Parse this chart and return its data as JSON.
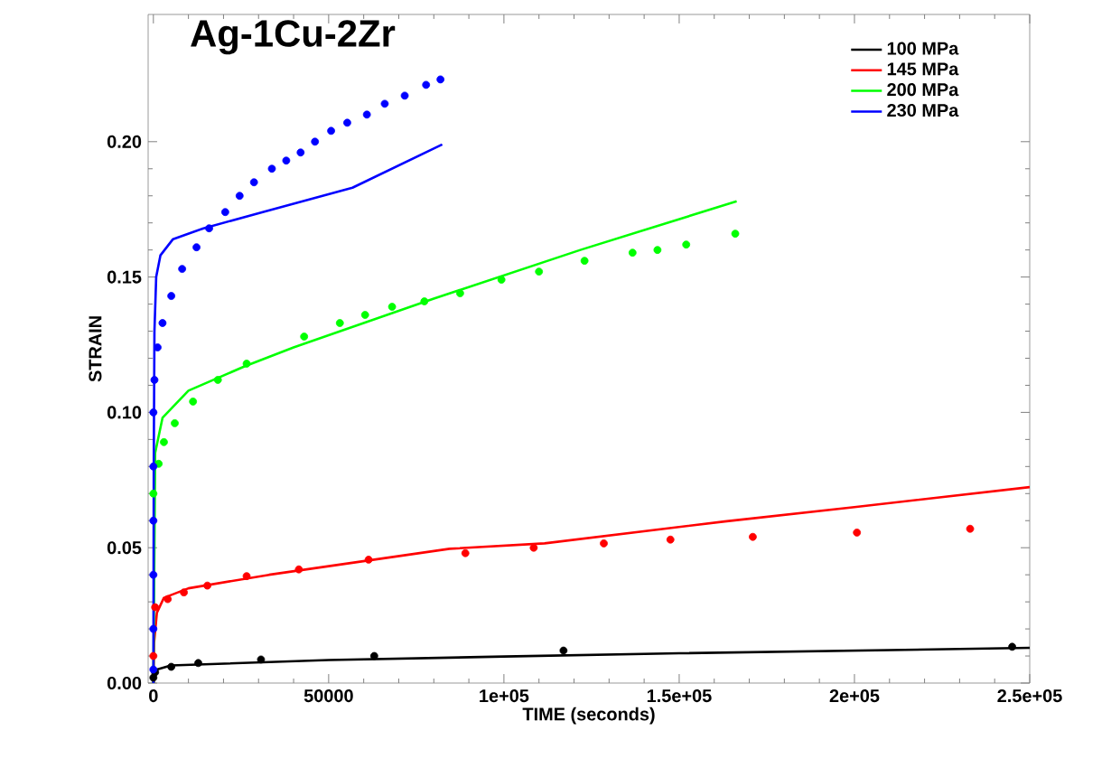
{
  "chart_data": {
    "type": "line",
    "title": "Ag-1Cu-2Zr",
    "xlabel": "TIME  (seconds)",
    "ylabel": "STRAIN",
    "xlim": [
      -1500,
      250000
    ],
    "ylim": [
      0,
      0.247
    ],
    "xticks": [
      0,
      50000,
      {
        "value": 100000,
        "label": "1e+05"
      },
      {
        "value": 150000,
        "label": "1.5e+05"
      },
      {
        "value": 200000,
        "label": "2e+05"
      },
      {
        "value": 250000,
        "label": "2.5e+05"
      }
    ],
    "yticks": [
      {
        "value": 0,
        "label": "0.00"
      },
      {
        "value": 0.05,
        "label": "0.05"
      },
      {
        "value": 0.1,
        "label": "0.10"
      },
      {
        "value": 0.15,
        "label": "0.15"
      },
      {
        "value": 0.2,
        "label": "0.20"
      }
    ],
    "grid": false,
    "legend": "top right",
    "series": [
      {
        "name": "100 MPa",
        "color": "#000000",
        "x": [
          0,
          1000,
          5000,
          50000,
          100000,
          150000,
          250000
        ],
        "values": [
          0,
          0.005,
          0.0065,
          0.0085,
          0.0098,
          0.011,
          0.013
        ]
      },
      {
        "name": "145 MPa",
        "color": "#ff0000",
        "x": [
          0,
          200,
          1000,
          3000,
          10000,
          33000,
          84500,
          111600,
          163000,
          200000,
          250000
        ],
        "values": [
          0,
          0.015,
          0.026,
          0.0315,
          0.035,
          0.04,
          0.0496,
          0.0516,
          0.0597,
          0.065,
          0.0724
        ]
      },
      {
        "name": "200 MPa",
        "color": "#00ff00",
        "x": [
          0,
          500,
          2600,
          10000,
          26000,
          40000,
          80000,
          121800,
          166400
        ],
        "values": [
          0,
          0.085,
          0.098,
          0.108,
          0.117,
          0.124,
          0.142,
          0.16,
          0.178
        ]
      },
      {
        "name": "230 MPa",
        "color": "#0000ff",
        "x": [
          0,
          100,
          300,
          800,
          2000,
          5600,
          14300,
          31200,
          56800,
          82400
        ],
        "values": [
          0,
          0.08,
          0.13,
          0.15,
          0.158,
          0.164,
          0.168,
          0.174,
          0.183,
          0.199
        ]
      },
      {
        "type": "scatter",
        "marker": "circle",
        "color": "#000000",
        "x": [
          0,
          500,
          5100,
          12800,
          30700,
          63000,
          117000,
          245000
        ],
        "values": [
          0.002,
          0.004,
          0.006,
          0.0074,
          0.0087,
          0.01,
          0.012,
          0.0134
        ]
      },
      {
        "type": "scatter",
        "marker": "circle",
        "color": "#ff0000",
        "x": [
          0,
          500,
          4100,
          8700,
          15400,
          26600,
          41500,
          61400,
          89000,
          108500,
          128500,
          147500,
          171000,
          200700,
          233000
        ],
        "values": [
          0.01,
          0.028,
          0.031,
          0.0335,
          0.036,
          0.0395,
          0.042,
          0.0456,
          0.048,
          0.05,
          0.0516,
          0.053,
          0.054,
          0.0556,
          0.057
        ]
      },
      {
        "type": "scatter",
        "marker": "circle",
        "color": "#00ff00",
        "x": [
          0,
          1500,
          3000,
          6100,
          11300,
          18400,
          26600,
          43000,
          53200,
          60400,
          68100,
          77300,
          87500,
          99300,
          110000,
          123000,
          136700,
          143800,
          152000,
          166000
        ],
        "values": [
          0.07,
          0.081,
          0.089,
          0.096,
          0.104,
          0.112,
          0.118,
          0.128,
          0.133,
          0.136,
          0.139,
          0.141,
          0.144,
          0.149,
          0.152,
          0.156,
          0.159,
          0.16,
          0.162,
          0.166
        ]
      },
      {
        "type": "scatter",
        "marker": "circle",
        "color": "#0000ff",
        "x": [
          0,
          0,
          0,
          0,
          0,
          0,
          300,
          1200,
          2600,
          5100,
          8200,
          12300,
          15900,
          20500,
          24600,
          28700,
          33800,
          37900,
          42000,
          46100,
          50700,
          55300,
          60900,
          66000,
          71700,
          77800,
          81900
        ],
        "values": [
          0.005,
          0.02,
          0.04,
          0.06,
          0.08,
          0.1,
          0.112,
          0.124,
          0.133,
          0.143,
          0.153,
          0.161,
          0.168,
          0.174,
          0.18,
          0.185,
          0.19,
          0.193,
          0.196,
          0.2,
          0.204,
          0.207,
          0.21,
          0.214,
          0.217,
          0.221,
          0.223
        ]
      }
    ]
  }
}
